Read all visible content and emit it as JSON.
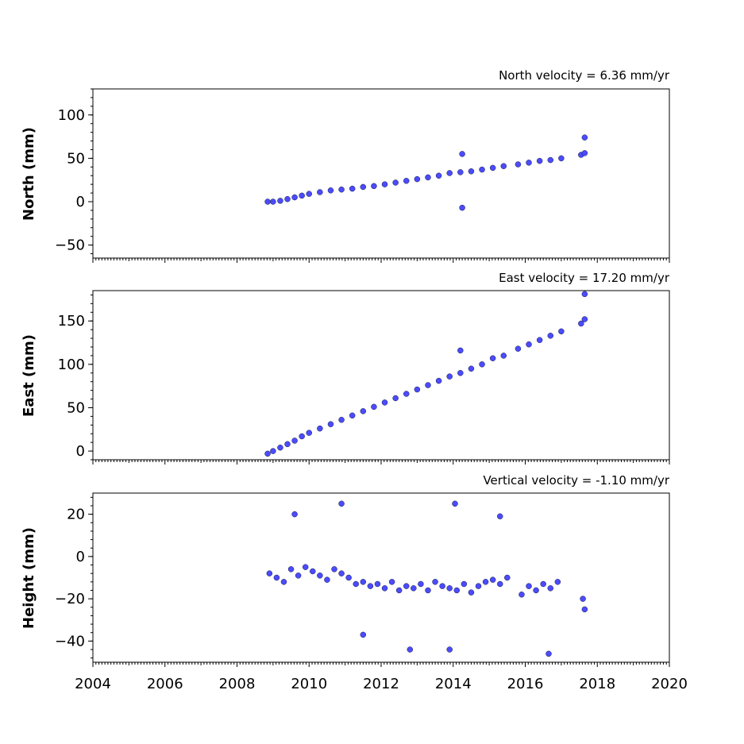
{
  "chart_data": [
    {
      "type": "scatter",
      "title": "North velocity = 6.36 mm/yr",
      "ylabel": "North (mm)",
      "xlim": [
        2004,
        2020
      ],
      "ylim": [
        -65,
        130
      ],
      "yticks": [
        100,
        50,
        0,
        -50
      ],
      "ytick_labels": [
        "100",
        "50",
        "0",
        "−50"
      ],
      "color": "#4b4bff",
      "series": [
        {
          "x": [
            2008.85,
            2009.0,
            2009.2,
            2009.4,
            2009.6,
            2009.8,
            2010.0,
            2010.3,
            2010.6,
            2010.9,
            2011.2,
            2011.5,
            2011.8,
            2012.1,
            2012.4,
            2012.7,
            2013.0,
            2013.3,
            2013.6,
            2013.9,
            2014.2,
            2014.5,
            2014.8,
            2015.1,
            2015.4,
            2015.8,
            2016.1,
            2016.4,
            2016.7,
            2017.0,
            2017.55,
            2017.65,
            2014.25,
            2014.25,
            2017.65
          ],
          "y": [
            0,
            0,
            1,
            3,
            5,
            7,
            9,
            11,
            13,
            14,
            15,
            17,
            18,
            20,
            22,
            24,
            26,
            28,
            30,
            33,
            34,
            35,
            37,
            39,
            41,
            43,
            45,
            47,
            48,
            50,
            54,
            56,
            55,
            -7,
            74
          ]
        }
      ]
    },
    {
      "type": "scatter",
      "title": "East velocity = 17.20 mm/yr",
      "ylabel": "East (mm)",
      "xlim": [
        2004,
        2020
      ],
      "ylim": [
        -10,
        185
      ],
      "yticks": [
        150,
        100,
        50,
        0
      ],
      "ytick_labels": [
        "150",
        "100",
        "50",
        "0"
      ],
      "color": "#4b4bff",
      "series": [
        {
          "x": [
            2008.85,
            2009.0,
            2009.2,
            2009.4,
            2009.6,
            2009.8,
            2010.0,
            2010.3,
            2010.6,
            2010.9,
            2011.2,
            2011.5,
            2011.8,
            2012.1,
            2012.4,
            2012.7,
            2013.0,
            2013.3,
            2013.6,
            2013.9,
            2014.2,
            2014.5,
            2014.8,
            2015.1,
            2015.4,
            2015.8,
            2016.1,
            2016.4,
            2016.7,
            2017.0,
            2017.55,
            2017.65,
            2014.2,
            2017.65
          ],
          "y": [
            -3,
            0,
            4,
            8,
            12,
            17,
            21,
            26,
            31,
            36,
            41,
            46,
            51,
            56,
            61,
            66,
            71,
            76,
            81,
            86,
            90,
            95,
            100,
            107,
            110,
            118,
            123,
            128,
            133,
            138,
            147,
            152,
            116,
            181
          ]
        }
      ]
    },
    {
      "type": "scatter",
      "title": "Vertical velocity = -1.10 mm/yr",
      "ylabel": "Height (mm)",
      "xlim": [
        2004,
        2020
      ],
      "ylim": [
        -50,
        30
      ],
      "yticks": [
        20,
        0,
        -20,
        -40
      ],
      "ytick_labels": [
        "20",
        "0",
        "−20",
        "−40"
      ],
      "xticks": [
        2004,
        2006,
        2008,
        2010,
        2012,
        2014,
        2016,
        2018,
        2020
      ],
      "xtick_labels": [
        "2004",
        "2006",
        "2008",
        "2010",
        "2012",
        "2014",
        "2016",
        "2018",
        "2020"
      ],
      "color": "#4b4bff",
      "series": [
        {
          "x": [
            2008.9,
            2009.1,
            2009.3,
            2009.5,
            2009.7,
            2009.9,
            2010.1,
            2010.3,
            2010.5,
            2010.7,
            2010.9,
            2011.1,
            2011.3,
            2011.5,
            2011.7,
            2011.9,
            2012.1,
            2012.3,
            2012.5,
            2012.7,
            2012.9,
            2013.1,
            2013.3,
            2013.5,
            2013.7,
            2013.9,
            2014.1,
            2014.3,
            2014.5,
            2014.7,
            2014.9,
            2015.1,
            2015.3,
            2015.5,
            2015.9,
            2016.1,
            2016.3,
            2016.5,
            2016.7,
            2016.9,
            2017.6,
            2017.65,
            2010.9,
            2014.05,
            2012.8,
            2013.9,
            2016.65,
            2009.6,
            2015.3,
            2011.5
          ],
          "y": [
            -8,
            -10,
            -12,
            -6,
            -9,
            -5,
            -7,
            -9,
            -11,
            -6,
            -8,
            -10,
            -13,
            -12,
            -14,
            -13,
            -15,
            -12,
            -16,
            -14,
            -15,
            -13,
            -16,
            -12,
            -14,
            -15,
            -16,
            -13,
            -17,
            -14,
            -12,
            -11,
            -13,
            -10,
            -18,
            -14,
            -16,
            -13,
            -15,
            -12,
            -20,
            -25,
            25,
            25,
            -44,
            -44,
            -46,
            20,
            19,
            -37
          ]
        }
      ]
    }
  ]
}
